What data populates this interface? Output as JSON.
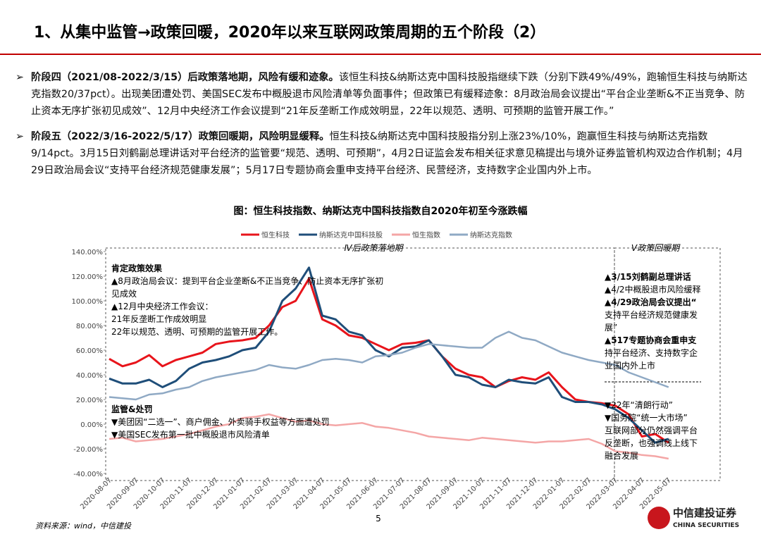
{
  "header": {
    "title": "1、从集中监管→政策回暖，2020年以来互联网政策周期的五个阶段（2）"
  },
  "bullets": [
    {
      "lead": "阶段四（2021/08-2022/3/15）后政策落地期，风险有缓和迹象。",
      "text": "该恒生科技&纳斯达克中国科技股指继续下跌（分别下跌49%/49%，跑输恒生科技与纳斯达克指数20/37pct）。出现美团遭处罚、美国SEC发布中概股退市风险清单等负面事件；但政策已有缓释迹象：8月政治局会议提出“平台企业垄断&不正当竞争、防止资本无序扩张初见成效”、12月中央经济工作会议提到“21年反垄断工作成效明显，22年以规范、透明、可预期的监管开展工作。”"
    },
    {
      "lead": "阶段五（2022/3/16-2022/5/17）政策回暖期，风险明显缓释。",
      "text": "恒生科技&纳斯达克中国科技股指分别上涨23%/10%，跑赢恒生科技与纳斯达克指数9/14pct。3月15日刘鹤副总理讲话对平台经济的监管要“规范、透明、可预期”，4月2日证监会发布相关征求意见稿提出与境外证券监管机构双边合作机制；4月29日政治局会议“支持平台经济规范健康发展”；5月17日专题协商会重申支持平台经济、民营经济，支持数字企业国内外上市。"
    }
  ],
  "chart_data": {
    "type": "line",
    "title": "图：恒生科技指数、纳斯达克中国科技指数自2020年初至今涨跌幅",
    "categories": [
      "2020-08-07",
      null,
      "2020-09-07",
      null,
      "2020-10-07",
      null,
      "2020-11-07",
      null,
      "2020-12-07",
      null,
      "2021-01-07",
      null,
      "2021-02-07",
      null,
      "2021-03-07",
      null,
      "2021-04-07",
      null,
      "2021-05-07",
      null,
      "2021-06-07",
      null,
      "2021-07-07",
      null,
      "2021-08-07",
      null,
      "2021-09-07",
      null,
      "2021-10-07",
      null,
      "2021-11-07",
      null,
      "2021-12-07",
      null,
      "2022-01-07",
      null,
      "2022-02-07",
      null,
      "2022-03-07",
      null,
      "2022-04-07",
      null,
      "2022-05-07"
    ],
    "series": [
      {
        "name": "恒生科技",
        "color": "#e8141b",
        "width": 3,
        "values": [
          53,
          47,
          50,
          56,
          47,
          52,
          55,
          58,
          65,
          67,
          68,
          70,
          80,
          95,
          100,
          118,
          85,
          80,
          72,
          70,
          65,
          60,
          65,
          66,
          68,
          55,
          45,
          40,
          38,
          30,
          35,
          38,
          36,
          42,
          30,
          20,
          18,
          17,
          15,
          8,
          -10,
          -8,
          -15
        ]
      },
      {
        "name": "纳斯达克中国科技股",
        "color": "#1f4e79",
        "width": 3,
        "values": [
          37,
          33,
          33,
          36,
          30,
          35,
          45,
          50,
          52,
          55,
          60,
          62,
          75,
          100,
          110,
          127,
          88,
          85,
          75,
          72,
          60,
          55,
          62,
          63,
          68,
          55,
          40,
          38,
          32,
          30,
          36,
          34,
          33,
          38,
          22,
          18,
          18,
          16,
          12,
          5,
          -5,
          -15,
          -12
        ]
      },
      {
        "name": "恒生指数",
        "color": "#f4a6a6",
        "width": 2.5,
        "values": [
          -12,
          -11,
          -14,
          -13,
          -12,
          -10,
          -8,
          -5,
          -2,
          0,
          5,
          6,
          8,
          5,
          2,
          3,
          0,
          -1,
          0,
          1,
          -2,
          -3,
          -5,
          -7,
          -10,
          -11,
          -12,
          -13,
          -11,
          -12,
          -13,
          -14,
          -15,
          -14,
          -14,
          -13,
          -12,
          -16,
          -22,
          -23,
          -25,
          -26,
          -28
        ]
      },
      {
        "name": "纳斯达克指数",
        "color": "#8fa9c4",
        "width": 2.5,
        "values": [
          22,
          21,
          20,
          24,
          25,
          28,
          30,
          35,
          38,
          40,
          42,
          44,
          48,
          46,
          45,
          48,
          52,
          53,
          52,
          50,
          55,
          56,
          58,
          62,
          65,
          64,
          63,
          62,
          62,
          70,
          75,
          70,
          68,
          63,
          58,
          55,
          52,
          50,
          48,
          42,
          38,
          34,
          30
        ]
      }
    ],
    "ylim": [
      -40,
      140
    ],
    "yticks": [
      {
        "value": -40,
        "label": "-40.00%"
      },
      {
        "value": -20,
        "label": "-20.00%"
      },
      {
        "value": 0,
        "label": "0.00%"
      },
      {
        "value": 20,
        "label": "20.00%"
      },
      {
        "value": 40,
        "label": "40.00%"
      },
      {
        "value": 60,
        "label": "60.00%"
      },
      {
        "value": 80,
        "label": "80.00%"
      },
      {
        "value": 100,
        "label": "100.00%"
      },
      {
        "value": 120,
        "label": "120.00%"
      },
      {
        "value": 140,
        "label": "140.00%"
      }
    ],
    "annotations": [
      "Ⅳ后政策落地期",
      "Ⅴ政策回暖期",
      "肯定政策效果",
      "▲8月政治局会议：提到平台企业垄断&不正当竞争、防止资本无序扩张初",
      "见成效",
      "▲12月中央经济工作会议：",
      "21年反垄断工作成效明显",
      "22年以规范、透明、可预期的监管开展工作。",
      "监管&处罚",
      "▼美团因“二选一”、商户佣金、外卖骑手权益等方面遭处罚",
      "▼美国SEC发布第一批中概股退市风险清单",
      "▲3/15刘鹤副总理讲话",
      "▲4/2中概股退市风险缓释",
      "▲4/29政治局会议提出“",
      "支持平台经济规范健康发",
      "展”",
      "▲517专题协商会重申支",
      "持平台经济、支持数字企",
      "业国内外上市",
      "▼22年“清朗行动”",
      "▼国务院“统一大市场”",
      "互联网部分仍然强调平台",
      "反垄断，也强调线上线下",
      "融合发展"
    ]
  },
  "footer": {
    "source": "资料来源：wind，中信建投",
    "page": "5",
    "logo": "中信建投证券",
    "logo_en": "CHINA SECURITIES"
  }
}
